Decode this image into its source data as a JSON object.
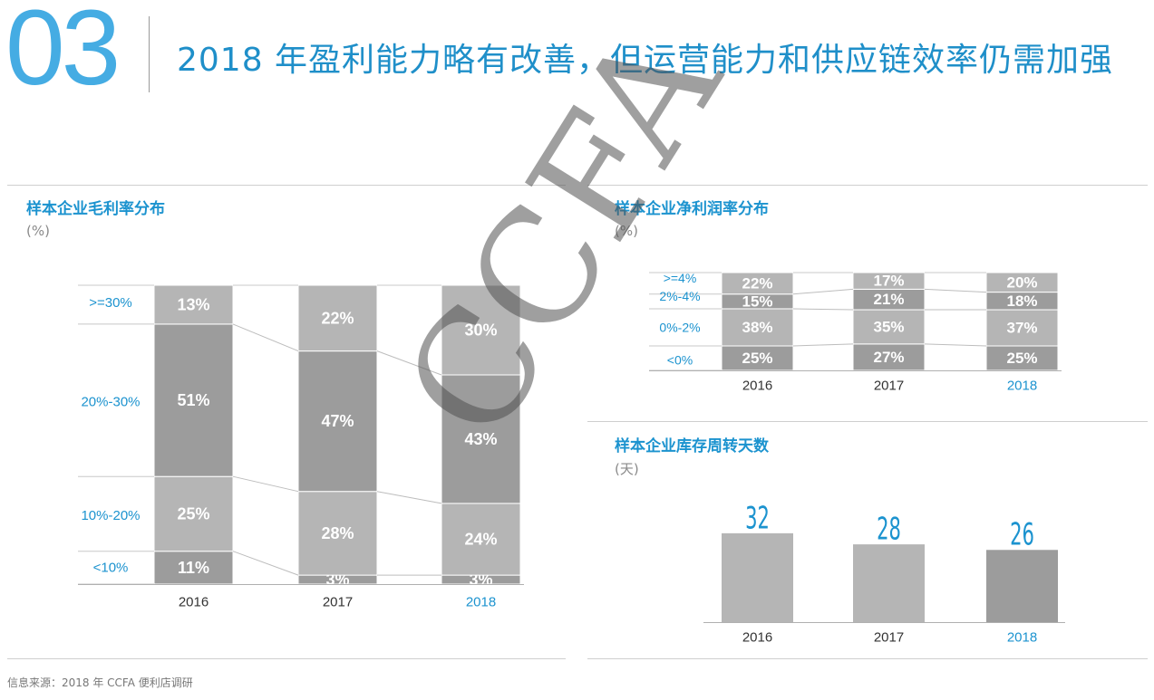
{
  "header": {
    "section_number": "03",
    "title": "2018 年盈利能力略有改善，但运营能力和供应链效率仍需加强"
  },
  "source_text": "信息来源：2018 年 CCFA 便利店调研",
  "watermark": "CCFA",
  "colors": {
    "accent": "#1c93cf",
    "light_gray": "#b5b5b5",
    "dark_gray": "#9c9c9c",
    "label_text": "#ffffff",
    "axis_text": "#333333",
    "highlight_year": "#1c93cf",
    "inventory_value": "#1c93cf"
  },
  "panels": {
    "gross": {
      "title": "样本企业毛利率分布",
      "unit": "(%)"
    },
    "net": {
      "title": "样本企业净利润率分布",
      "unit": "(%)"
    },
    "inventory": {
      "title": "样本企业库存周转天数",
      "unit": "(天)"
    }
  },
  "chart_data": [
    {
      "id": "gross",
      "type": "bar",
      "stacked": true,
      "categories": [
        "2016",
        "2017",
        "2018"
      ],
      "highlight_category": "2018",
      "series": [
        {
          "name": "<10%",
          "values": [
            11,
            3,
            3
          ]
        },
        {
          "name": "10%-20%",
          "values": [
            25,
            28,
            24
          ]
        },
        {
          "name": "20%-30%",
          "values": [
            51,
            47,
            43
          ]
        },
        {
          "name": ">=30%",
          "values": [
            13,
            22,
            30
          ]
        }
      ],
      "ylim": [
        0,
        100
      ]
    },
    {
      "id": "net",
      "type": "bar",
      "stacked": true,
      "categories": [
        "2016",
        "2017",
        "2018"
      ],
      "highlight_category": "2018",
      "series": [
        {
          "name": "<0%",
          "values": [
            25,
            27,
            25
          ]
        },
        {
          "name": "0%-2%",
          "values": [
            38,
            35,
            37
          ]
        },
        {
          "name": "2%-4%",
          "values": [
            15,
            21,
            18
          ]
        },
        {
          "name": ">=4%",
          "values": [
            22,
            17,
            20
          ]
        }
      ],
      "ylim": [
        0,
        100
      ]
    },
    {
      "id": "inventory",
      "type": "bar",
      "categories": [
        "2016",
        "2017",
        "2018"
      ],
      "highlight_category": "2018",
      "values": [
        32,
        28,
        26
      ],
      "ylim": [
        0,
        45
      ]
    }
  ]
}
